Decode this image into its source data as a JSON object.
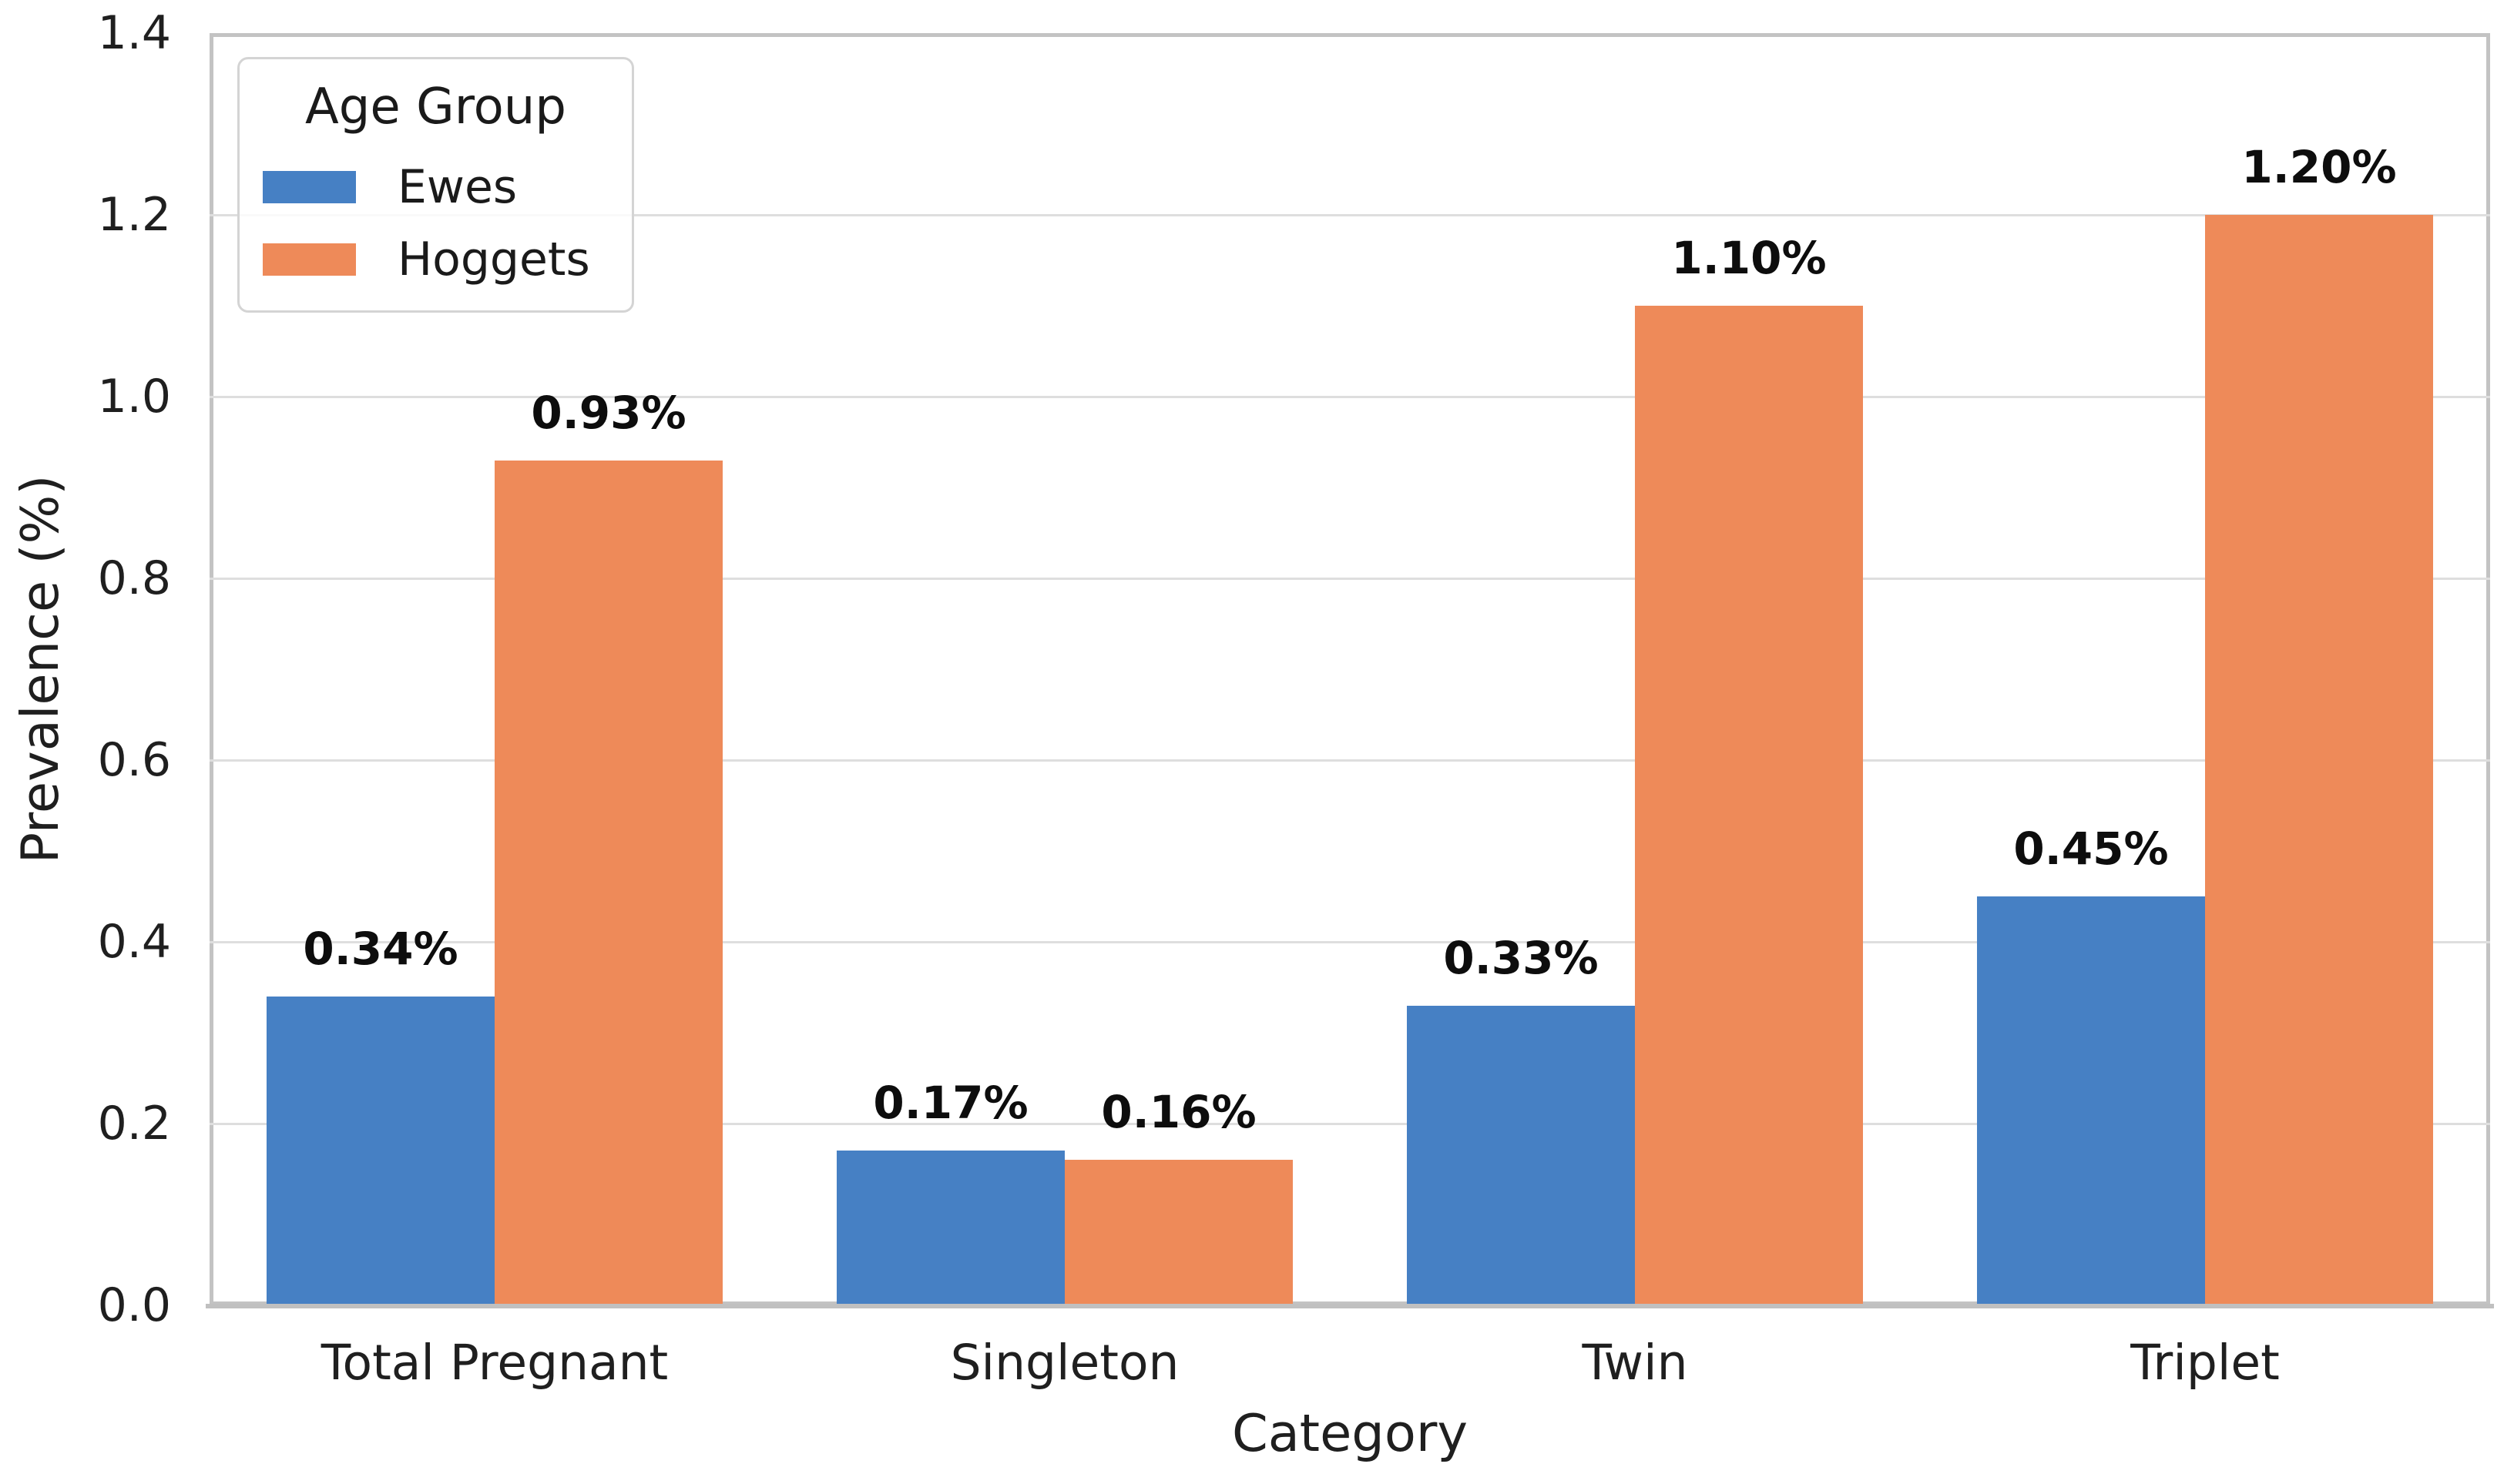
{
  "chart_data": {
    "type": "bar",
    "title": "",
    "xlabel": "Category",
    "ylabel": "Prevalence (%)",
    "categories": [
      "Total Pregnant",
      "Singleton",
      "Twin",
      "Triplet"
    ],
    "series": [
      {
        "name": "Ewes",
        "color": "#4680c4",
        "values": [
          0.34,
          0.17,
          0.33,
          0.45
        ],
        "labels": [
          "0.34%",
          "0.17%",
          "0.33%",
          "0.45%"
        ]
      },
      {
        "name": "Hoggets",
        "color": "#ee8a59",
        "values": [
          0.93,
          0.16,
          1.1,
          1.2
        ],
        "labels": [
          "0.93%",
          "0.16%",
          "1.10%",
          "1.20%"
        ]
      }
    ],
    "ylim": [
      0,
      1.4
    ],
    "ytick_labels": [
      "0.0",
      "0.2",
      "0.4",
      "0.6",
      "0.8",
      "1.0",
      "1.2",
      "1.4"
    ],
    "grid": true,
    "legend": {
      "title": "Age Group",
      "position": "upper-left",
      "entries": [
        "Ewes",
        "Hoggets"
      ]
    }
  },
  "colors": {
    "ewes_blue": "#4680c4",
    "hoggets_orange": "#ee8a59",
    "gridline": "#dedede",
    "spine": "#c3c3c3",
    "text": "#1f1f1f"
  }
}
